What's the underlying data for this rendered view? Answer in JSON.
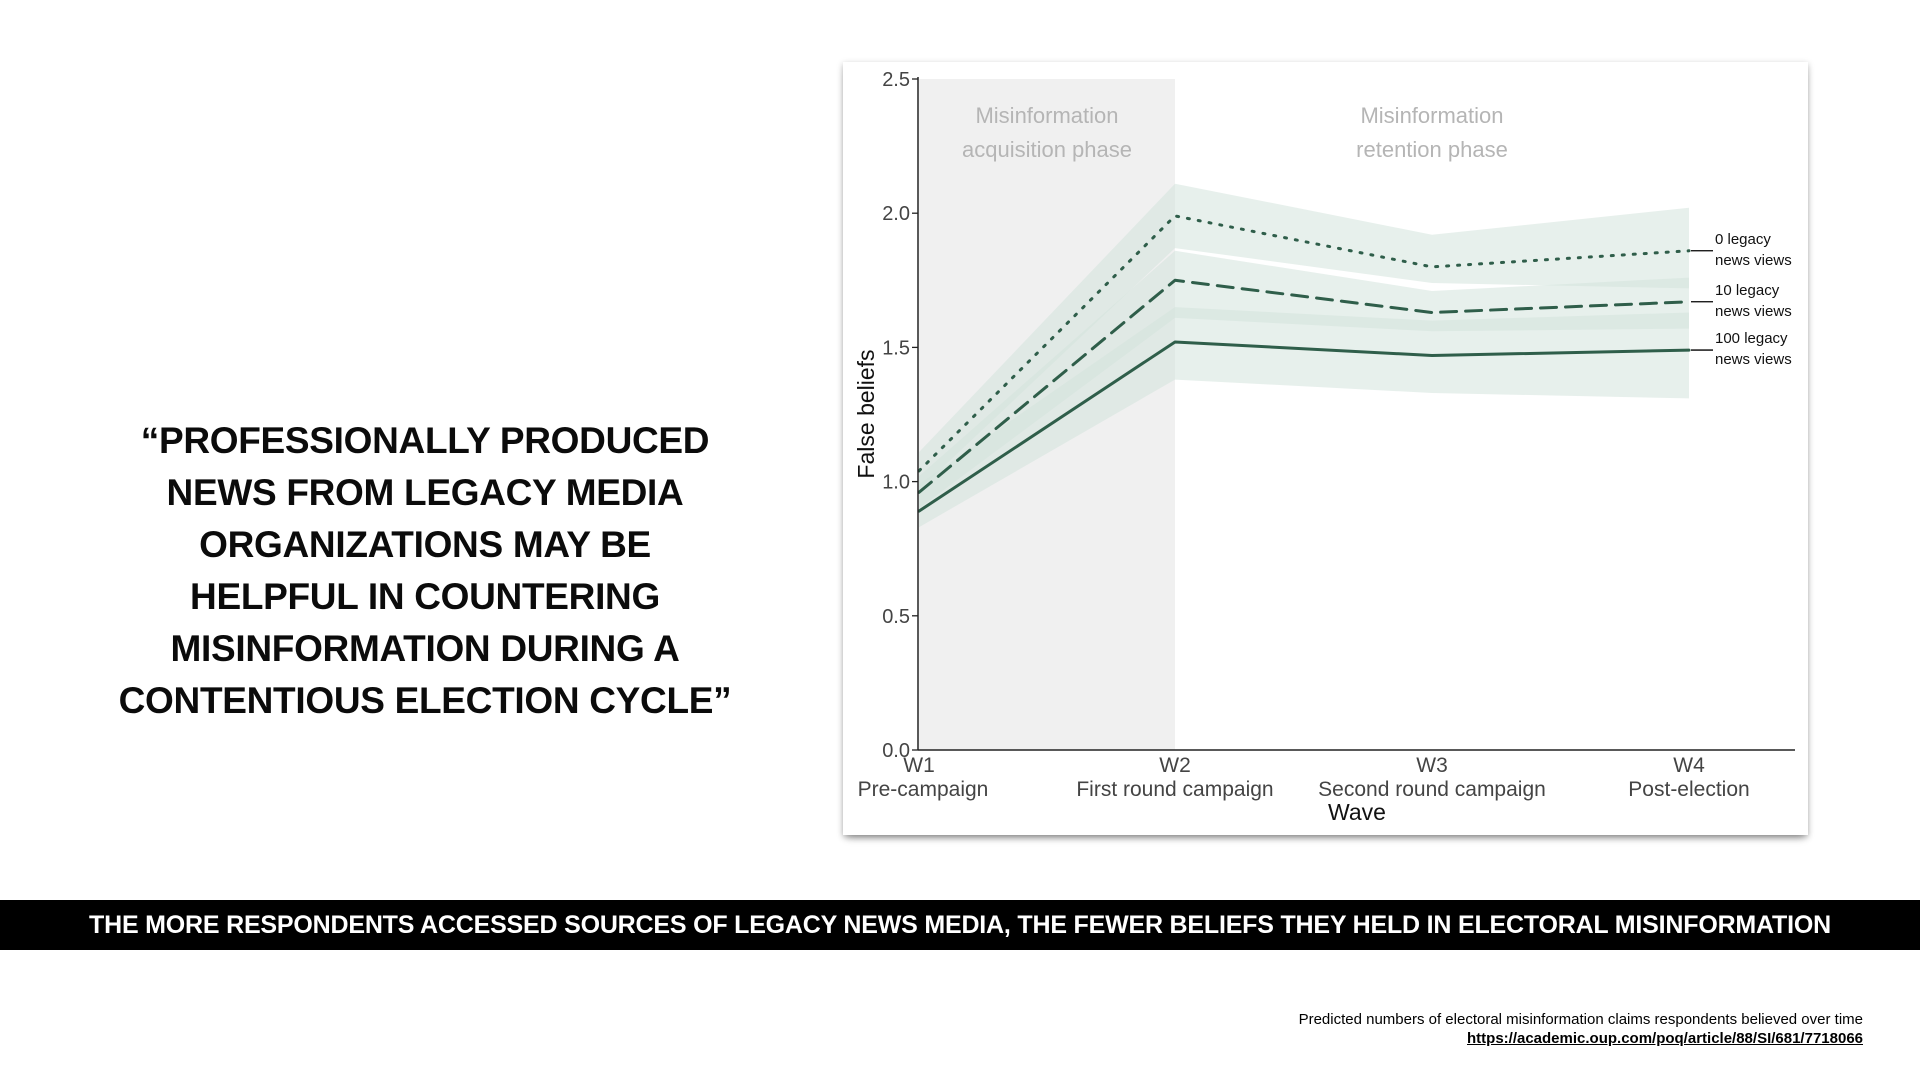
{
  "quote": {
    "lines": [
      "“PROFESSIONALLY PRODUCED",
      "NEWS FROM LEGACY MEDIA",
      "ORGANIZATIONS MAY BE",
      "HELPFUL IN COUNTERING",
      "MISINFORMATION DURING A",
      "CONTENTIOUS ELECTION CYCLE”"
    ]
  },
  "chart_data": {
    "type": "line",
    "title": "",
    "xlabel": "Wave",
    "ylabel": "False beliefs",
    "ylim": [
      0,
      2.5
    ],
    "yticks": [
      "0.0",
      "0.5",
      "1.0",
      "1.5",
      "2.0",
      "2.5"
    ],
    "categories": [
      "W1",
      "W2",
      "W3",
      "W4"
    ],
    "category_sublabels": [
      "Pre-campaign",
      "First round campaign",
      "Second round campaign",
      "Post-election"
    ],
    "phases": [
      {
        "label_lines": [
          "Misinformation",
          "acquisition phase"
        ],
        "from": 0,
        "to": 1,
        "shaded": true
      },
      {
        "label_lines": [
          "Misinformation",
          "retention phase"
        ],
        "from": 1,
        "to": 3,
        "shaded": false
      }
    ],
    "series": [
      {
        "name": "0 legacy news views",
        "label_lines": [
          "0 legacy",
          "news views"
        ],
        "style": "dotted",
        "values": [
          1.04,
          1.99,
          1.8,
          1.86
        ],
        "lower": [
          0.97,
          1.87,
          1.74,
          1.72
        ],
        "upper": [
          1.11,
          2.11,
          1.92,
          2.02
        ]
      },
      {
        "name": "10 legacy news views",
        "label_lines": [
          "10 legacy",
          "news views"
        ],
        "style": "dashed",
        "values": [
          0.96,
          1.75,
          1.63,
          1.67
        ],
        "lower": [
          0.9,
          1.61,
          1.56,
          1.57
        ],
        "upper": [
          1.02,
          1.86,
          1.71,
          1.76
        ]
      },
      {
        "name": "100 legacy news views",
        "label_lines": [
          "100 legacy",
          "news views"
        ],
        "style": "solid",
        "values": [
          0.89,
          1.52,
          1.47,
          1.49
        ],
        "lower": [
          0.83,
          1.38,
          1.33,
          1.31
        ],
        "upper": [
          0.99,
          1.65,
          1.6,
          1.63
        ]
      }
    ],
    "colors": {
      "line": "#2f5e4a",
      "band": "#d4e3dc",
      "phase_shade": "#f0f0f0",
      "phase_text": "#b5b5b5",
      "axis": "#222222"
    }
  },
  "banner": {
    "text": "THE MORE RESPONDENTS ACCESSED SOURCES OF LEGACY NEWS MEDIA, THE FEWER BELIEFS THEY HELD IN ELECTORAL MISINFORMATION"
  },
  "caption": {
    "description": "Predicted numbers of electoral misinformation claims respondents believed over time",
    "link": "https://academic.oup.com/poq/article/88/SI/681/7718066"
  }
}
